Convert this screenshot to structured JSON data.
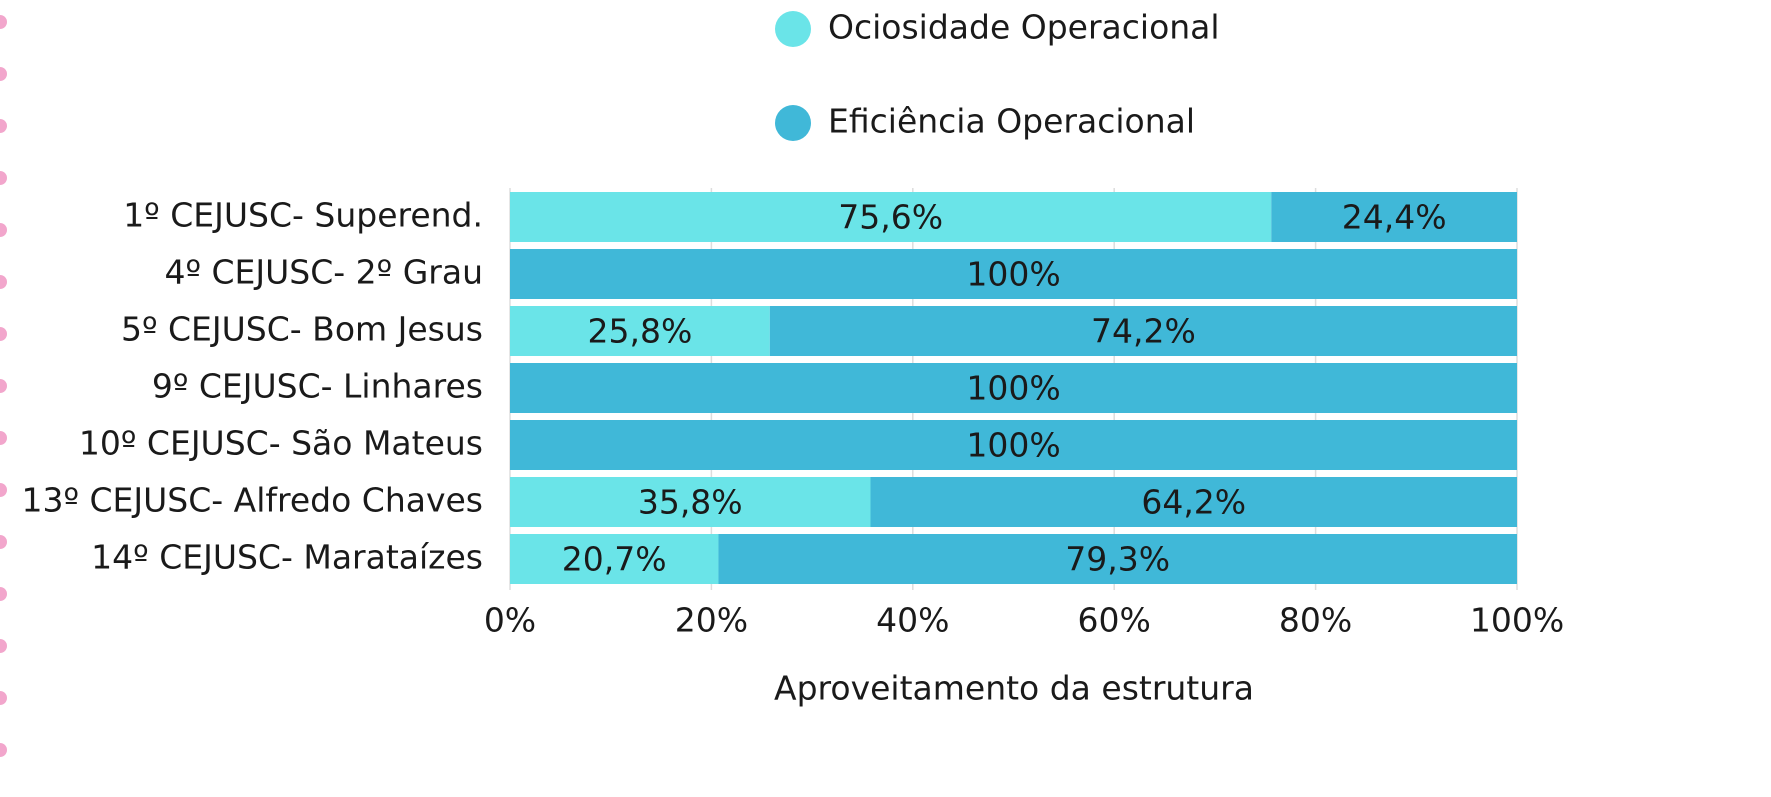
{
  "chart_data": {
    "type": "stacked_bar_horizontal",
    "categories": [
      "1º CEJUSC- Superend.",
      "4º CEJUSC- 2º Grau",
      "5º CEJUSC- Bom Jesus",
      "9º CEJUSC- Linhares",
      "10º CEJUSC- São Mateus",
      "13º CEJUSC- Alfredo Chaves",
      "14º CEJUSC- Marataízes"
    ],
    "series": [
      {
        "name": "Ociosidade Operacional",
        "color": "#6ae4e8",
        "values": [
          75.6,
          0,
          25.8,
          0,
          0,
          35.8,
          20.7
        ],
        "value_labels": [
          "75,6%",
          null,
          "25,8%",
          null,
          null,
          "35,8%",
          "20,7%"
        ]
      },
      {
        "name": "Eficiência Operacional",
        "color": "#40b8d8",
        "values": [
          24.4,
          100,
          74.2,
          100,
          100,
          64.2,
          79.3
        ],
        "value_labels": [
          "24,4%",
          "100%",
          "74,2%",
          "100%",
          "100%",
          "64,2%",
          "79,3%"
        ]
      }
    ],
    "x_label": "Aproveitamento da estrutura",
    "xlim": [
      0,
      100
    ],
    "xticks": [
      {
        "value": 0,
        "label": "0%"
      },
      {
        "value": 20,
        "label": "20%"
      },
      {
        "value": 40,
        "label": "40%"
      },
      {
        "value": 60,
        "label": "60%"
      },
      {
        "value": 80,
        "label": "80%"
      },
      {
        "value": 100,
        "label": "100%"
      }
    ],
    "grid": true,
    "legend": "top"
  }
}
